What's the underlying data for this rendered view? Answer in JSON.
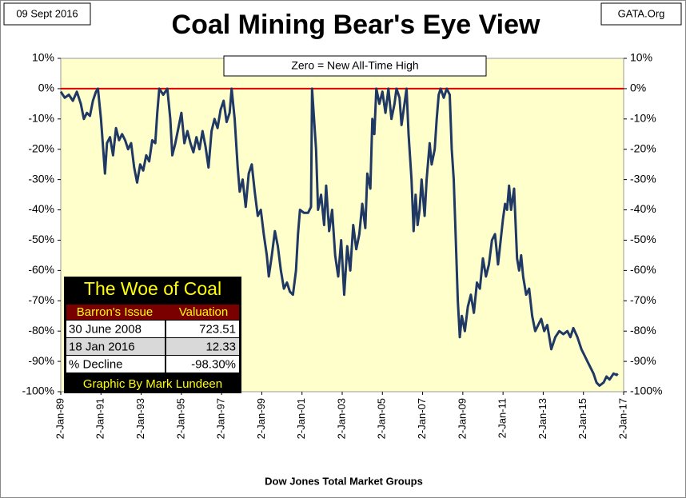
{
  "chart_data": {
    "type": "line",
    "title": "Coal Mining Bear's Eye View",
    "date_label": "09 Sept 2016",
    "source": "GATA.Org",
    "x_label": "Dow Jones Total Market Groups",
    "annotation": "Zero = New All-Time High",
    "reference_line": {
      "value": 0,
      "color": "#e00000"
    },
    "color": "#1f3864",
    "xlim": [
      1989,
      2017
    ],
    "xticks": [
      {
        "value": 1989,
        "label": "2-Jan-89"
      },
      {
        "value": 1991,
        "label": "2-Jan-91"
      },
      {
        "value": 1993,
        "label": "2-Jan-93"
      },
      {
        "value": 1995,
        "label": "2-Jan-95"
      },
      {
        "value": 1997,
        "label": "2-Jan-97"
      },
      {
        "value": 1999,
        "label": "2-Jan-99"
      },
      {
        "value": 2001,
        "label": "2-Jan-01"
      },
      {
        "value": 2003,
        "label": "2-Jan-03"
      },
      {
        "value": 2005,
        "label": "2-Jan-05"
      },
      {
        "value": 2007,
        "label": "2-Jan-07"
      },
      {
        "value": 2009,
        "label": "2-Jan-09"
      },
      {
        "value": 2011,
        "label": "2-Jan-11"
      },
      {
        "value": 2013,
        "label": "2-Jan-13"
      },
      {
        "value": 2015,
        "label": "2-Jan-15"
      },
      {
        "value": 2017,
        "label": "2-Jan-17"
      }
    ],
    "ylim": [
      -100,
      10
    ],
    "yticks": [
      {
        "value": 10,
        "label": "10%"
      },
      {
        "value": 0,
        "label": "0%"
      },
      {
        "value": -10,
        "label": "-10%"
      },
      {
        "value": -20,
        "label": "-20%"
      },
      {
        "value": -30,
        "label": "-30%"
      },
      {
        "value": -40,
        "label": "-40%"
      },
      {
        "value": -50,
        "label": "-50%"
      },
      {
        "value": -60,
        "label": "-60%"
      },
      {
        "value": -70,
        "label": "-70%"
      },
      {
        "value": -80,
        "label": "-80%"
      },
      {
        "value": -90,
        "label": "-90%"
      },
      {
        "value": -100,
        "label": "-100%"
      }
    ],
    "x": [
      1989.0,
      1989.2,
      1989.4,
      1989.6,
      1989.8,
      1990.0,
      1990.15,
      1990.3,
      1990.45,
      1990.6,
      1990.75,
      1990.85,
      1991.0,
      1991.1,
      1991.2,
      1991.3,
      1991.45,
      1991.6,
      1991.75,
      1991.9,
      1992.05,
      1992.2,
      1992.35,
      1992.5,
      1992.65,
      1992.8,
      1992.95,
      1993.1,
      1993.25,
      1993.4,
      1993.55,
      1993.7,
      1993.8,
      1993.9,
      1994.1,
      1994.3,
      1994.45,
      1994.55,
      1994.7,
      1994.85,
      1995.0,
      1995.15,
      1995.3,
      1995.45,
      1995.6,
      1995.75,
      1995.9,
      1996.05,
      1996.2,
      1996.35,
      1996.5,
      1996.65,
      1996.8,
      1996.95,
      1997.1,
      1997.25,
      1997.4,
      1997.5,
      1997.65,
      1997.8,
      1997.9,
      1998.05,
      1998.2,
      1998.35,
      1998.5,
      1998.65,
      1998.8,
      1998.95,
      1999.1,
      1999.25,
      1999.35,
      1999.5,
      1999.65,
      1999.8,
      1999.95,
      2000.1,
      2000.25,
      2000.4,
      2000.55,
      2000.7,
      2000.8,
      2000.9,
      2001.1,
      2001.3,
      2001.45,
      2001.5,
      2001.6,
      2001.7,
      2001.8,
      2001.95,
      2002.1,
      2002.2,
      2002.35,
      2002.5,
      2002.65,
      2002.8,
      2002.95,
      2003.1,
      2003.25,
      2003.4,
      2003.55,
      2003.7,
      2003.85,
      2004.0,
      2004.15,
      2004.25,
      2004.4,
      2004.5,
      2004.6,
      2004.7,
      2004.85,
      2005.0,
      2005.15,
      2005.3,
      2005.45,
      2005.6,
      2005.7,
      2005.85,
      2005.95,
      2006.1,
      2006.2,
      2006.3,
      2006.45,
      2006.55,
      2006.65,
      2006.75,
      2006.85,
      2006.95,
      2007.1,
      2007.2,
      2007.35,
      2007.45,
      2007.6,
      2007.7,
      2007.8,
      2007.9,
      2008.05,
      2008.2,
      2008.35,
      2008.45,
      2008.55,
      2008.65,
      2008.75,
      2008.85,
      2008.95,
      2009.1,
      2009.25,
      2009.4,
      2009.55,
      2009.7,
      2009.85,
      2010.0,
      2010.15,
      2010.3,
      2010.45,
      2010.6,
      2010.75,
      2010.85,
      2011.0,
      2011.1,
      2011.2,
      2011.3,
      2011.4,
      2011.55,
      2011.7,
      2011.8,
      2011.9,
      2012.0,
      2012.15,
      2012.3,
      2012.45,
      2012.6,
      2012.75,
      2012.9,
      2013.05,
      2013.2,
      2013.4,
      2013.6,
      2013.8,
      2014.0,
      2014.2,
      2014.35,
      2014.5,
      2014.7,
      2014.9,
      2015.05,
      2015.2,
      2015.35,
      2015.5,
      2015.65,
      2015.8,
      2016.0,
      2016.15,
      2016.3,
      2016.5,
      2016.65,
      2016.7
    ],
    "values": [
      -1,
      -3,
      -2,
      -4,
      -1,
      -5,
      -10,
      -8,
      -9,
      -4,
      -1,
      0,
      -10,
      -19,
      -28,
      -18,
      -16,
      -22,
      -13,
      -17,
      -15,
      -17,
      -20,
      -18,
      -26,
      -31,
      -25,
      -27,
      -22,
      -24,
      -17,
      -18,
      -8,
      0,
      -2,
      0,
      -10,
      -22,
      -18,
      -13,
      -8,
      -18,
      -14,
      -18,
      -21,
      -16,
      -20,
      -14,
      -19,
      -26,
      -14,
      -10,
      -13,
      -7,
      -4,
      -11,
      -8,
      0,
      -10,
      -26,
      -34,
      -30,
      -39,
      -28,
      -25,
      -34,
      -42,
      -40,
      -48,
      -55,
      -62,
      -55,
      -47,
      -52,
      -60,
      -66,
      -64,
      -67,
      -68,
      -60,
      -48,
      -40,
      -41,
      -41,
      -39,
      0,
      -10,
      -20,
      -40,
      -35,
      -45,
      -32,
      -47,
      -40,
      -55,
      -62,
      -50,
      -68,
      -52,
      -60,
      -45,
      -53,
      -48,
      -38,
      -46,
      -28,
      -33,
      -10,
      -15,
      0,
      -5,
      -1,
      -8,
      0,
      -10,
      -5,
      0,
      -3,
      -12,
      -5,
      0,
      -15,
      -30,
      -47,
      -35,
      -45,
      -40,
      -30,
      -42,
      -30,
      -18,
      -25,
      -20,
      -10,
      -2,
      0,
      -3,
      0,
      -2,
      -20,
      -30,
      -50,
      -70,
      -82,
      -75,
      -80,
      -72,
      -68,
      -74,
      -64,
      -66,
      -56,
      -62,
      -58,
      -50,
      -48,
      -58,
      -52,
      -43,
      -38,
      -40,
      -32,
      -40,
      -33,
      -56,
      -60,
      -55,
      -62,
      -68,
      -66,
      -75,
      -80,
      -78,
      -76,
      -80,
      -78,
      -86,
      -82,
      -80,
      -81,
      -80,
      -82,
      -79,
      -82,
      -86,
      -88,
      -90,
      -92,
      -94,
      -97,
      -98,
      -97,
      -95,
      -96,
      -94,
      -94.5,
      -94
    ],
    "table": {
      "title": "The Woe of Coal",
      "header": [
        "Barron's Issue",
        "Valuation"
      ],
      "rows": [
        [
          "30 June 2008",
          "723.51"
        ],
        [
          "18 Jan 2016",
          "12.33"
        ],
        [
          "% Decline",
          "-98.30%"
        ]
      ],
      "footer": "Graphic By Mark Lundeen"
    }
  }
}
